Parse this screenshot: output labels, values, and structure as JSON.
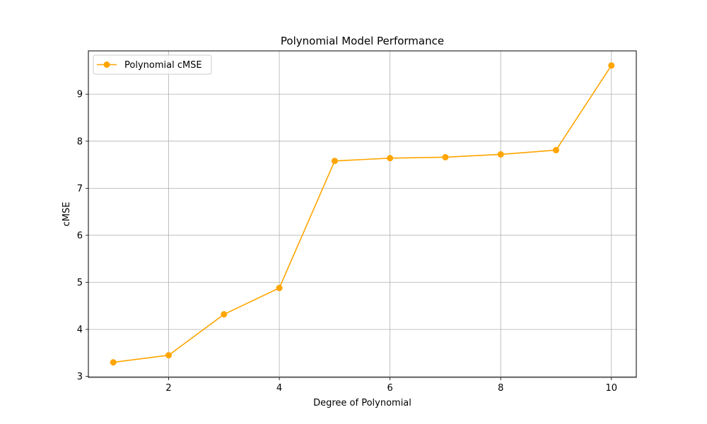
{
  "chart_data": {
    "type": "line",
    "title": "Polynomial Model Performance",
    "xlabel": "Degree of Polynomial",
    "ylabel": "cMSE",
    "x": [
      1,
      2,
      3,
      4,
      5,
      6,
      7,
      8,
      9,
      10
    ],
    "series": [
      {
        "name": "Polynomial cMSE",
        "color": "#ffa500",
        "marker": "circle",
        "values": [
          3.3,
          3.45,
          4.32,
          4.88,
          7.58,
          7.64,
          7.66,
          7.72,
          7.81,
          9.61
        ]
      }
    ],
    "xlim": [
      0.55,
      10.45
    ],
    "ylim": [
      2.98,
      9.92
    ],
    "xticks": [
      2,
      4,
      6,
      8,
      10
    ],
    "yticks": [
      3,
      4,
      5,
      6,
      7,
      8,
      9
    ],
    "xtick_labels": [
      "2",
      "4",
      "6",
      "8",
      "10"
    ],
    "ytick_labels": [
      "3",
      "4",
      "5",
      "6",
      "7",
      "8",
      "9"
    ],
    "grid": true,
    "grid_color": "#b0b0b0",
    "legend_position": "top-left"
  }
}
